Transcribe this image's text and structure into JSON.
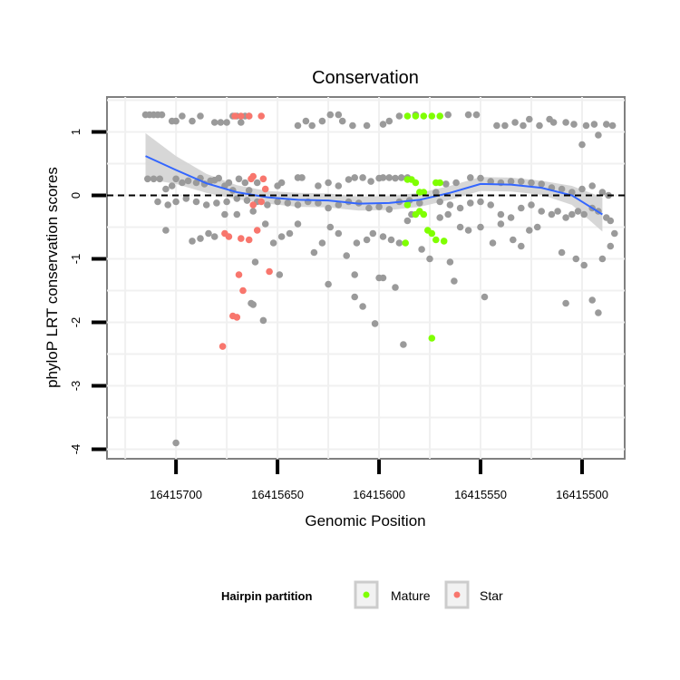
{
  "chart_data": {
    "type": "scatter",
    "title": "Conservation",
    "xlabel": "Genomic Position",
    "ylabel": "phyloP LRT conservation scores",
    "xlim": [
      16415734,
      16415479
    ],
    "x_reversed": true,
    "ylim": [
      -4.15,
      1.55
    ],
    "x_ticks": [
      16415700,
      16415650,
      16415600,
      16415550,
      16415500
    ],
    "x_tick_labels": [
      "16415700",
      "16415650",
      "16415600",
      "16415550",
      "16415500"
    ],
    "y_ticks": [
      -4,
      -3,
      -2,
      -1,
      0,
      1
    ],
    "y_tick_labels": [
      "-4",
      "-3",
      "-2",
      "-1",
      "0",
      "1"
    ],
    "grid": true,
    "reference_line": {
      "y": 0,
      "style": "dashed"
    },
    "legend": {
      "title": "Hairpin partition",
      "position": "bottom",
      "entries": [
        {
          "label": "Mature",
          "color": "#7FFF00"
        },
        {
          "label": "Star",
          "color": "#F8766D"
        }
      ]
    },
    "colors": {
      "other": "#9A9A9A",
      "mature": "#7FFF00",
      "star": "#F8766D",
      "smooth": "#3366FF",
      "band": "#D3D3D3"
    },
    "smooth": {
      "x": [
        16415715,
        16415700,
        16415685,
        16415670,
        16415655,
        16415640,
        16415625,
        16415610,
        16415595,
        16415580,
        16415565,
        16415550,
        16415535,
        16415520,
        16415505,
        16415490
      ],
      "y": [
        0.62,
        0.4,
        0.19,
        0.05,
        -0.03,
        -0.07,
        -0.08,
        -0.13,
        -0.12,
        -0.07,
        0.04,
        0.18,
        0.17,
        0.12,
        0.0,
        -0.3
      ],
      "upper": [
        0.98,
        0.62,
        0.34,
        0.16,
        0.07,
        0.04,
        0.03,
        -0.02,
        -0.01,
        0.04,
        0.15,
        0.29,
        0.28,
        0.23,
        0.15,
        -0.03
      ],
      "lower": [
        0.26,
        0.18,
        0.04,
        -0.06,
        -0.13,
        -0.18,
        -0.19,
        -0.24,
        -0.23,
        -0.18,
        -0.07,
        0.07,
        0.06,
        0.01,
        -0.15,
        -0.57
      ]
    },
    "series": [
      {
        "name": "",
        "color": "#9A9A9A",
        "points": [
          [
            16415715,
            1.27
          ],
          [
            16415713,
            1.27
          ],
          [
            16415711,
            1.27
          ],
          [
            16415709,
            1.27
          ],
          [
            16415707,
            1.27
          ],
          [
            16415702,
            1.17
          ],
          [
            16415700,
            1.17
          ],
          [
            16415697,
            1.25
          ],
          [
            16415692,
            1.17
          ],
          [
            16415688,
            1.25
          ],
          [
            16415681,
            1.15
          ],
          [
            16415678,
            1.15
          ],
          [
            16415675,
            1.15
          ],
          [
            16415672,
            1.25
          ],
          [
            16415670,
            1.25
          ],
          [
            16415668,
            1.15
          ],
          [
            16415666,
            1.25
          ],
          [
            16415664,
            1.25
          ],
          [
            16415640,
            1.1
          ],
          [
            16415636,
            1.17
          ],
          [
            16415633,
            1.1
          ],
          [
            16415628,
            1.17
          ],
          [
            16415624,
            1.27
          ],
          [
            16415620,
            1.27
          ],
          [
            16415618,
            1.17
          ],
          [
            16415613,
            1.1
          ],
          [
            16415606,
            1.1
          ],
          [
            16415598,
            1.12
          ],
          [
            16415595,
            1.17
          ],
          [
            16415590,
            1.25
          ],
          [
            16415582,
            1.27
          ],
          [
            16415566,
            1.27
          ],
          [
            16415556,
            1.27
          ],
          [
            16415552,
            1.27
          ],
          [
            16415542,
            1.1
          ],
          [
            16415538,
            1.1
          ],
          [
            16415533,
            1.15
          ],
          [
            16415529,
            1.1
          ],
          [
            16415526,
            1.2
          ],
          [
            16415521,
            1.1
          ],
          [
            16415516,
            1.2
          ],
          [
            16415514,
            1.15
          ],
          [
            16415508,
            1.15
          ],
          [
            16415504,
            1.12
          ],
          [
            16415498,
            1.1
          ],
          [
            16415494,
            1.12
          ],
          [
            16415492,
            0.95
          ],
          [
            16415488,
            1.12
          ],
          [
            16415485,
            1.1
          ],
          [
            16415500,
            0.8
          ],
          [
            16415714,
            0.26
          ],
          [
            16415711,
            0.26
          ],
          [
            16415708,
            0.26
          ],
          [
            16415705,
            0.1
          ],
          [
            16415702,
            0.15
          ],
          [
            16415700,
            0.26
          ],
          [
            16415697,
            0.2
          ],
          [
            16415694,
            0.23
          ],
          [
            16415690,
            0.2
          ],
          [
            16415688,
            0.27
          ],
          [
            16415686,
            0.18
          ],
          [
            16415683,
            0.23
          ],
          [
            16415681,
            0.24
          ],
          [
            16415679,
            0.27
          ],
          [
            16415676,
            0.15
          ],
          [
            16415674,
            0.2
          ],
          [
            16415672,
            0.08
          ],
          [
            16415669,
            0.26
          ],
          [
            16415666,
            0.2
          ],
          [
            16415664,
            0.08
          ],
          [
            16415660,
            0.2
          ],
          [
            16415650,
            0.15
          ],
          [
            16415648,
            0.2
          ],
          [
            16415640,
            0.28
          ],
          [
            16415638,
            0.28
          ],
          [
            16415630,
            0.15
          ],
          [
            16415625,
            0.2
          ],
          [
            16415620,
            0.15
          ],
          [
            16415615,
            0.25
          ],
          [
            16415612,
            0.28
          ],
          [
            16415608,
            0.28
          ],
          [
            16415604,
            0.22
          ],
          [
            16415600,
            0.27
          ],
          [
            16415598,
            0.28
          ],
          [
            16415595,
            0.28
          ],
          [
            16415592,
            0.27
          ],
          [
            16415589,
            0.28
          ],
          [
            16415586,
            0.28
          ],
          [
            16415572,
            0.05
          ],
          [
            16415567,
            0.18
          ],
          [
            16415562,
            0.2
          ],
          [
            16415555,
            0.28
          ],
          [
            16415550,
            0.27
          ],
          [
            16415545,
            0.22
          ],
          [
            16415540,
            0.2
          ],
          [
            16415535,
            0.22
          ],
          [
            16415530,
            0.22
          ],
          [
            16415525,
            0.2
          ],
          [
            16415520,
            0.18
          ],
          [
            16415515,
            0.12
          ],
          [
            16415510,
            0.1
          ],
          [
            16415505,
            0.05
          ],
          [
            16415500,
            0.1
          ],
          [
            16415495,
            0.15
          ],
          [
            16415490,
            0.05
          ],
          [
            16415487,
            0.0
          ],
          [
            16415709,
            -0.1
          ],
          [
            16415704,
            -0.15
          ],
          [
            16415700,
            -0.1
          ],
          [
            16415695,
            -0.05
          ],
          [
            16415690,
            -0.1
          ],
          [
            16415685,
            -0.15
          ],
          [
            16415680,
            -0.12
          ],
          [
            16415675,
            -0.1
          ],
          [
            16415670,
            -0.05
          ],
          [
            16415665,
            -0.08
          ],
          [
            16415660,
            -0.1
          ],
          [
            16415655,
            -0.15
          ],
          [
            16415650,
            -0.1
          ],
          [
            16415645,
            -0.12
          ],
          [
            16415640,
            -0.15
          ],
          [
            16415635,
            -0.1
          ],
          [
            16415630,
            -0.12
          ],
          [
            16415625,
            -0.2
          ],
          [
            16415620,
            -0.15
          ],
          [
            16415615,
            -0.1
          ],
          [
            16415610,
            -0.12
          ],
          [
            16415605,
            -0.2
          ],
          [
            16415600,
            -0.18
          ],
          [
            16415595,
            -0.22
          ],
          [
            16415590,
            -0.1
          ],
          [
            16415585,
            -0.08
          ],
          [
            16415580,
            -0.12
          ],
          [
            16415570,
            -0.1
          ],
          [
            16415565,
            -0.15
          ],
          [
            16415560,
            -0.2
          ],
          [
            16415555,
            -0.12
          ],
          [
            16415550,
            -0.1
          ],
          [
            16415545,
            -0.15
          ],
          [
            16415540,
            -0.3
          ],
          [
            16415535,
            -0.35
          ],
          [
            16415530,
            -0.2
          ],
          [
            16415525,
            -0.15
          ],
          [
            16415520,
            -0.25
          ],
          [
            16415515,
            -0.3
          ],
          [
            16415512,
            -0.25
          ],
          [
            16415508,
            -0.35
          ],
          [
            16415505,
            -0.3
          ],
          [
            16415502,
            -0.25
          ],
          [
            16415499,
            -0.3
          ],
          [
            16415495,
            -0.2
          ],
          [
            16415492,
            -0.25
          ],
          [
            16415488,
            -0.35
          ],
          [
            16415486,
            -0.4
          ],
          [
            16415705,
            -0.55
          ],
          [
            16415692,
            -0.72
          ],
          [
            16415688,
            -0.68
          ],
          [
            16415684,
            -0.6
          ],
          [
            16415681,
            -0.65
          ],
          [
            16415676,
            -0.3
          ],
          [
            16415670,
            -0.3
          ],
          [
            16415662,
            -0.25
          ],
          [
            16415656,
            -0.45
          ],
          [
            16415652,
            -0.75
          ],
          [
            16415648,
            -0.65
          ],
          [
            16415644,
            -0.6
          ],
          [
            16415640,
            -0.45
          ],
          [
            16415632,
            -0.9
          ],
          [
            16415628,
            -0.75
          ],
          [
            16415624,
            -0.5
          ],
          [
            16415620,
            -0.6
          ],
          [
            16415616,
            -0.95
          ],
          [
            16415611,
            -0.75
          ],
          [
            16415606,
            -0.7
          ],
          [
            16415603,
            -0.6
          ],
          [
            16415598,
            -0.65
          ],
          [
            16415594,
            -0.7
          ],
          [
            16415590,
            -0.75
          ],
          [
            16415586,
            -0.4
          ],
          [
            16415584,
            -0.3
          ],
          [
            16415570,
            -0.35
          ],
          [
            16415566,
            -0.3
          ],
          [
            16415560,
            -0.5
          ],
          [
            16415556,
            -0.55
          ],
          [
            16415550,
            -0.5
          ],
          [
            16415544,
            -0.75
          ],
          [
            16415540,
            -0.45
          ],
          [
            16415534,
            -0.7
          ],
          [
            16415530,
            -0.8
          ],
          [
            16415526,
            -0.55
          ],
          [
            16415522,
            -0.5
          ],
          [
            16415510,
            -0.9
          ],
          [
            16415503,
            -1.0
          ],
          [
            16415499,
            -1.1
          ],
          [
            16415490,
            -1.0
          ],
          [
            16415486,
            -0.8
          ],
          [
            16415484,
            -0.6
          ],
          [
            16415661,
            -1.05
          ],
          [
            16415625,
            -1.4
          ],
          [
            16415612,
            -1.25
          ],
          [
            16415600,
            -1.3
          ],
          [
            16415612,
            -1.6
          ],
          [
            16415608,
            -1.75
          ],
          [
            16415598,
            -1.3
          ],
          [
            16415592,
            -1.45
          ],
          [
            16415579,
            -0.85
          ],
          [
            16415575,
            -1.0
          ],
          [
            16415565,
            -1.05
          ],
          [
            16415563,
            -1.35
          ],
          [
            16415548,
            -1.6
          ],
          [
            16415508,
            -1.7
          ],
          [
            16415495,
            -1.65
          ],
          [
            16415492,
            -1.85
          ],
          [
            16415663,
            -1.7
          ],
          [
            16415662,
            -1.72
          ],
          [
            16415602,
            -2.02
          ],
          [
            16415657,
            -1.97
          ],
          [
            16415649,
            -1.25
          ],
          [
            16415588,
            -2.35
          ],
          [
            16415700,
            -3.9
          ]
        ]
      },
      {
        "name": "Mature",
        "color": "#7FFF00",
        "points": [
          [
            16415586,
            1.25
          ],
          [
            16415582,
            1.25
          ],
          [
            16415578,
            1.25
          ],
          [
            16415574,
            1.25
          ],
          [
            16415570,
            1.25
          ],
          [
            16415586,
            0.25
          ],
          [
            16415584,
            0.25
          ],
          [
            16415582,
            0.2
          ],
          [
            16415572,
            0.2
          ],
          [
            16415570,
            0.2
          ],
          [
            16415580,
            0.05
          ],
          [
            16415578,
            0.05
          ],
          [
            16415586,
            -0.15
          ],
          [
            16415582,
            -0.3
          ],
          [
            16415580,
            -0.25
          ],
          [
            16415578,
            -0.3
          ],
          [
            16415576,
            -0.55
          ],
          [
            16415574,
            -0.6
          ],
          [
            16415572,
            -0.7
          ],
          [
            16415568,
            -0.72
          ],
          [
            16415587,
            -0.75
          ],
          [
            16415574,
            -2.25
          ]
        ]
      },
      {
        "name": "Star",
        "color": "#F8766D",
        "points": [
          [
            16415671,
            1.25
          ],
          [
            16415668,
            1.25
          ],
          [
            16415664,
            1.25
          ],
          [
            16415658,
            1.25
          ],
          [
            16415663,
            0.26
          ],
          [
            16415657,
            0.26
          ],
          [
            16415662,
            0.3
          ],
          [
            16415656,
            0.1
          ],
          [
            16415658,
            -0.1
          ],
          [
            16415662,
            -0.15
          ],
          [
            16415676,
            -0.6
          ],
          [
            16415674,
            -0.65
          ],
          [
            16415668,
            -0.68
          ],
          [
            16415664,
            -0.7
          ],
          [
            16415660,
            -0.55
          ],
          [
            16415669,
            -1.25
          ],
          [
            16415667,
            -1.5
          ],
          [
            16415654,
            -1.2
          ],
          [
            16415672,
            -1.9
          ],
          [
            16415670,
            -1.92
          ],
          [
            16415677,
            -2.38
          ]
        ]
      }
    ]
  }
}
